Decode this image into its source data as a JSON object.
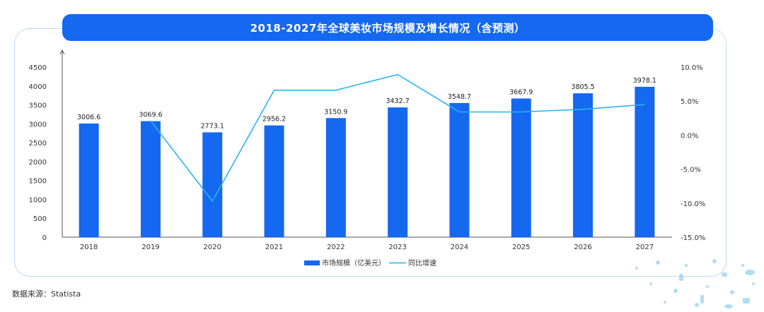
{
  "chart_data": {
    "type": "bar",
    "title": "2018-2027年全球美妆市场规模及增长情况（含预测）",
    "categories": [
      "2018",
      "2019",
      "2020",
      "2021",
      "2022",
      "2023",
      "2024",
      "2025",
      "2026",
      "2027"
    ],
    "series": [
      {
        "name": "市场规模（亿美元）",
        "type": "bar",
        "axis": "left",
        "values": [
          3006.6,
          3069.6,
          2773.1,
          2956.2,
          3150.9,
          3432.7,
          3548.7,
          3667.9,
          3805.5,
          3978.1
        ],
        "labels": [
          "3006.6",
          "3069.6",
          "2773.1",
          "2956.2",
          "3150.9",
          "3432.7",
          "3548.7",
          "3667.9",
          "3805.5",
          "3978.1"
        ]
      },
      {
        "name": "同比增速",
        "type": "line",
        "axis": "right",
        "values": [
          null,
          2.1,
          -9.7,
          6.6,
          6.6,
          8.9,
          3.4,
          3.4,
          3.8,
          4.5
        ]
      }
    ],
    "left_axis": {
      "ylim": [
        0,
        4500
      ],
      "ticks": [
        "0",
        "500",
        "1000",
        "1500",
        "2000",
        "2500",
        "3000",
        "3500",
        "4000",
        "4500"
      ]
    },
    "right_axis": {
      "ylim": [
        -15,
        10
      ],
      "ticks": [
        "10.0%",
        "5.0%",
        "0.0%",
        "-5.0%",
        "-10.0%",
        "-15.0%"
      ]
    },
    "grid": false,
    "legend_position": "bottom-center",
    "colors": {
      "bar": "#1568f0",
      "line": "#27b6ef",
      "axis": "#555555"
    }
  },
  "source_text": "数据来源：Statista"
}
